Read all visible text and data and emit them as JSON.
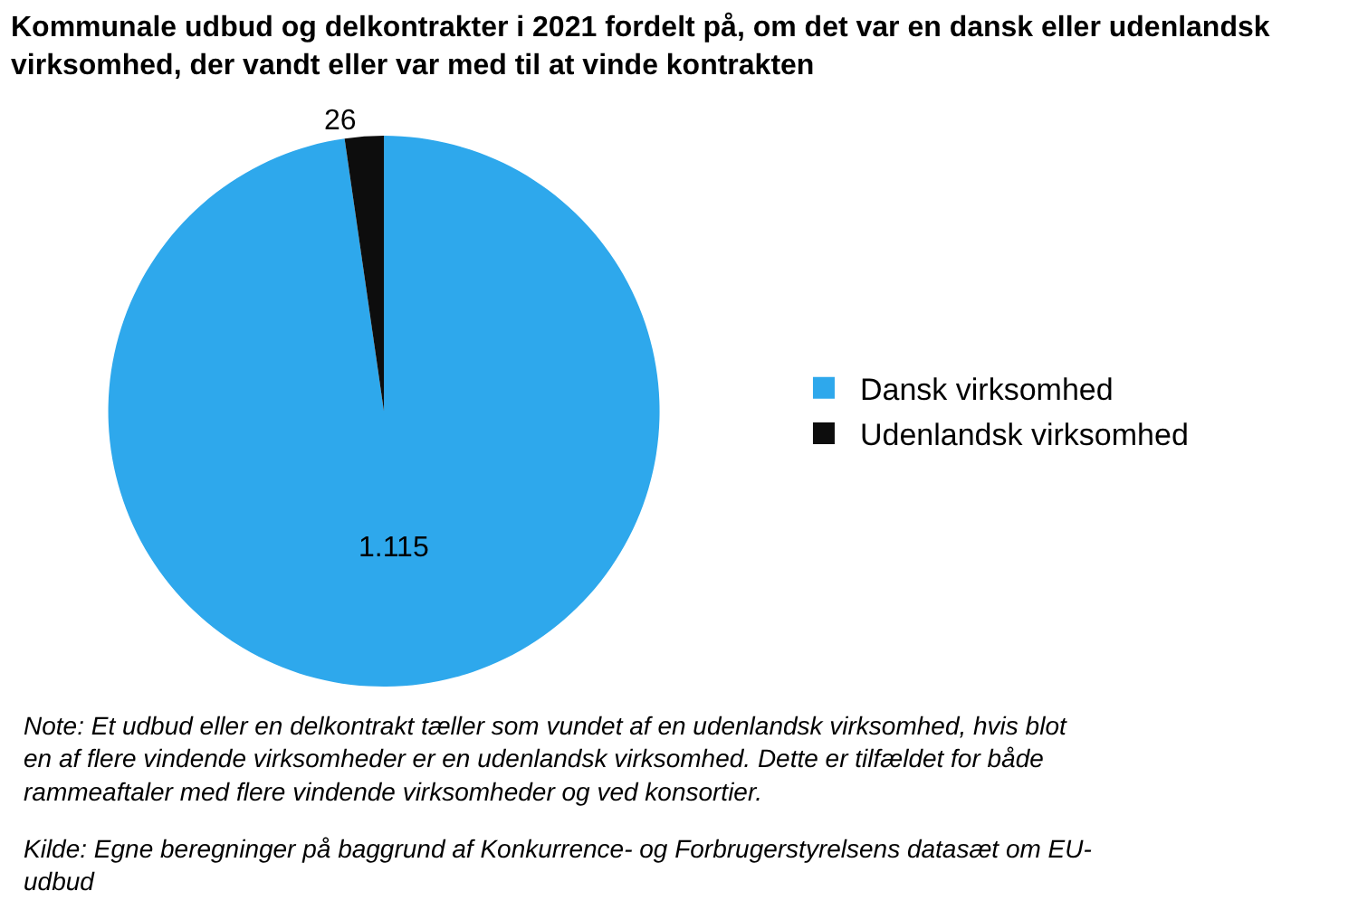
{
  "chart_data": {
    "type": "pie",
    "title": "Kommunale udbud og delkontrakter i 2021 fordelt på, om det var en dansk eller udenlandsk virksomhed, der vandt eller var med til at vinde kontrakten",
    "categories": [
      "Dansk virksomhed",
      "Udenlandsk virksomhed"
    ],
    "values": [
      1115,
      26
    ],
    "value_labels": [
      "1.115",
      "26"
    ],
    "colors": [
      "#2ea8ec",
      "#0d0d0d"
    ],
    "legend": "right",
    "annotations": [
      "Note: Et udbud eller en delkontrakt tæller som vundet af en udenlandsk virksomhed, hvis blot en af flere vindende virksomheder er en udenlandsk virksomhed. Dette er tilfældet for både rammeaftaler med flere vindende virksomheder og ved konsortier.",
      "Kilde: Egne beregninger på baggrund af Konkurrence- og Forbrugerstyrelsens datasæt om EU-udbud"
    ]
  }
}
